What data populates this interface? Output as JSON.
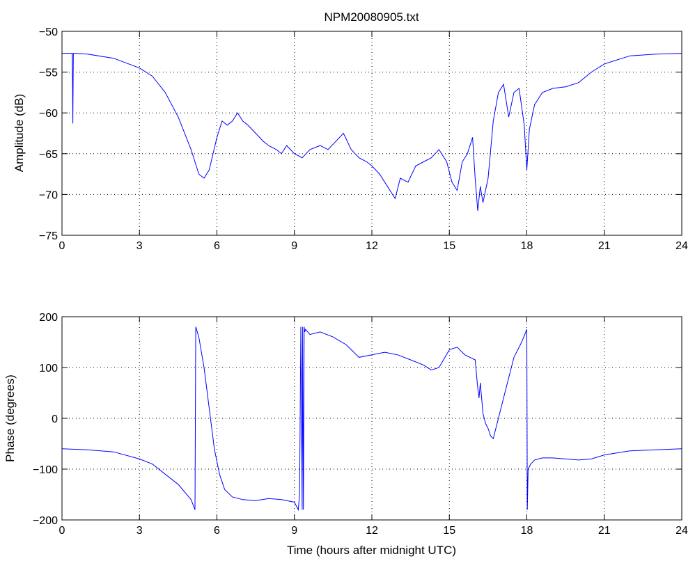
{
  "chart_data": [
    {
      "type": "line",
      "title": "NPM20080905.txt",
      "xlabel": "",
      "ylabel": "Amplitude (dB)",
      "xlim": [
        0,
        24
      ],
      "ylim": [
        -75,
        -50
      ],
      "xticks": [
        "0",
        "3",
        "6",
        "9",
        "12",
        "15",
        "18",
        "21",
        "24"
      ],
      "yticks": [
        "-75",
        "-70",
        "-65",
        "-60",
        "-55",
        "-50"
      ],
      "grid": true,
      "color": "#0000ff",
      "series": [
        {
          "x": [
            0,
            0.4,
            0.42,
            0.44,
            0.46,
            1,
            2,
            3,
            3.5,
            4,
            4.5,
            5,
            5.3,
            5.5,
            5.7,
            6,
            6.2,
            6.4,
            6.6,
            6.8,
            7,
            7.2,
            7.5,
            7.8,
            8,
            8.3,
            8.5,
            8.7,
            9,
            9.3,
            9.6,
            10,
            10.3,
            10.6,
            10.9,
            11.2,
            11.5,
            11.8,
            12,
            12.3,
            12.6,
            12.9,
            13.1,
            13.4,
            13.7,
            14,
            14.3,
            14.6,
            14.9,
            15.1,
            15.3,
            15.5,
            15.7,
            15.9,
            16.0,
            16.1,
            16.2,
            16.3,
            16.5,
            16.7,
            16.9,
            17.1,
            17.3,
            17.5,
            17.7,
            17.9,
            18.0,
            18.1,
            18.3,
            18.6,
            19,
            19.5,
            20,
            20.5,
            21,
            21.5,
            22,
            23,
            24
          ],
          "y": [
            -52.7,
            -52.7,
            -61.3,
            -52.7,
            -52.7,
            -52.8,
            -53.3,
            -54.5,
            -55.5,
            -57.5,
            -60.5,
            -64.5,
            -67.5,
            -68,
            -67,
            -63,
            -61,
            -61.5,
            -61,
            -60,
            -61,
            -61.5,
            -62.5,
            -63.5,
            -64,
            -64.5,
            -65,
            -64,
            -65,
            -65.5,
            -64.5,
            -64,
            -64.5,
            -63.5,
            -62.5,
            -64.5,
            -65.5,
            -66,
            -66.5,
            -67.5,
            -69,
            -70.5,
            -68,
            -68.5,
            -66.5,
            -66,
            -65.5,
            -64.5,
            -66,
            -68.5,
            -69.5,
            -66,
            -65,
            -63,
            -68,
            -72,
            -69,
            -71,
            -68,
            -61,
            -57.5,
            -56.5,
            -60.5,
            -57.5,
            -57,
            -61.5,
            -67,
            -62,
            -59,
            -57.5,
            -57,
            -56.8,
            -56.3,
            -55,
            -54,
            -53.5,
            -53,
            -52.8,
            -52.7
          ]
        }
      ]
    },
    {
      "type": "line",
      "title": "",
      "xlabel": "Time (hours after midnight UTC)",
      "ylabel": "Phase (degrees)",
      "xlim": [
        0,
        24
      ],
      "ylim": [
        -200,
        200
      ],
      "xticks": [
        "0",
        "3",
        "6",
        "9",
        "12",
        "15",
        "18",
        "21",
        "24"
      ],
      "yticks": [
        "-200",
        "-100",
        "0",
        "100",
        "200"
      ],
      "grid": true,
      "color": "#0000ff",
      "series": [
        {
          "x": [
            0,
            1,
            2,
            3,
            3.5,
            4,
            4.5,
            5,
            5.15,
            5.18,
            5.3,
            5.5,
            5.7,
            5.9,
            6.1,
            6.3,
            6.6,
            7,
            7.5,
            8,
            8.5,
            9,
            9.15,
            9.2,
            9.25,
            9.3,
            9.32,
            9.35,
            9.38,
            9.4,
            9.43,
            9.6,
            10,
            10.5,
            11,
            11.5,
            12,
            12.5,
            13,
            13.5,
            14,
            14.3,
            14.6,
            15,
            15.3,
            15.6,
            15.8,
            16.0,
            16.1,
            16.15,
            16.2,
            16.3,
            16.4,
            16.5,
            16.6,
            16.7,
            16.9,
            17.2,
            17.5,
            17.8,
            18.0,
            18.02,
            18.05,
            18.15,
            18.3,
            18.6,
            19,
            19.5,
            20,
            20.5,
            21,
            21.5,
            22,
            23,
            24
          ],
          "y": [
            -60,
            -62,
            -66,
            -80,
            -90,
            -110,
            -130,
            -160,
            -180,
            180,
            160,
            100,
            20,
            -60,
            -110,
            -140,
            -155,
            -160,
            -162,
            -158,
            -160,
            -165,
            -180,
            -150,
            180,
            -180,
            180,
            -180,
            180,
            170,
            175,
            165,
            170,
            160,
            145,
            120,
            125,
            130,
            125,
            115,
            105,
            95,
            100,
            135,
            140,
            125,
            120,
            115,
            60,
            40,
            70,
            10,
            -10,
            -20,
            -35,
            -40,
            0,
            60,
            120,
            150,
            175,
            -180,
            -100,
            -90,
            -82,
            -78,
            -78,
            -80,
            -82,
            -80,
            -72,
            -68,
            -64,
            -62,
            -60
          ]
        }
      ]
    }
  ]
}
